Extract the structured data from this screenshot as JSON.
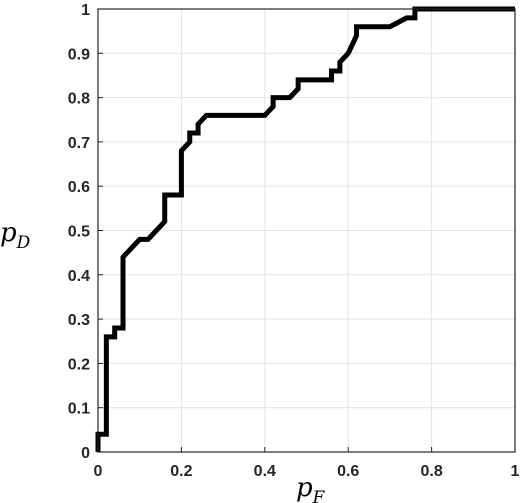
{
  "chart_data": {
    "type": "line",
    "xlabel": {
      "base": "p",
      "sub": "F"
    },
    "ylabel": {
      "base": "p",
      "sub": "D"
    },
    "xlim": [
      0,
      1
    ],
    "ylim": [
      0,
      1
    ],
    "xticks": [
      0,
      0.2,
      0.4,
      0.6,
      0.8,
      1
    ],
    "xtick_labels": [
      "0",
      "0.2",
      "0.4",
      "0.6",
      "0.8",
      "1"
    ],
    "yticks": [
      0,
      0.1,
      0.2,
      0.3,
      0.4,
      0.5,
      0.6,
      0.7,
      0.8,
      0.9,
      1
    ],
    "ytick_labels": [
      "0",
      "0.1",
      "0.2",
      "0.3",
      "0.4",
      "0.5",
      "0.6",
      "0.7",
      "0.8",
      "0.9",
      "1"
    ],
    "grid": true,
    "line_color": "#000000",
    "series": [
      {
        "x": [
          0,
          0,
          0.02,
          0.02,
          0.04,
          0.04,
          0.06,
          0.06,
          0.08,
          0.1,
          0.12,
          0.14,
          0.16,
          0.16,
          0.2,
          0.2,
          0.22,
          0.22,
          0.24,
          0.24,
          0.26,
          0.4,
          0.42,
          0.42,
          0.46,
          0.48,
          0.48,
          0.56,
          0.56,
          0.58,
          0.58,
          0.6,
          0.62,
          0.62,
          0.7,
          0.74,
          0.76,
          0.76,
          0.8,
          1
        ],
        "y": [
          0,
          0.04,
          0.04,
          0.26,
          0.26,
          0.28,
          0.28,
          0.44,
          0.46,
          0.48,
          0.48,
          0.5,
          0.52,
          0.58,
          0.58,
          0.68,
          0.7,
          0.72,
          0.72,
          0.74,
          0.76,
          0.76,
          0.78,
          0.8,
          0.8,
          0.82,
          0.84,
          0.84,
          0.86,
          0.86,
          0.88,
          0.9,
          0.94,
          0.96,
          0.96,
          0.98,
          0.98,
          1,
          1,
          1
        ]
      }
    ]
  }
}
